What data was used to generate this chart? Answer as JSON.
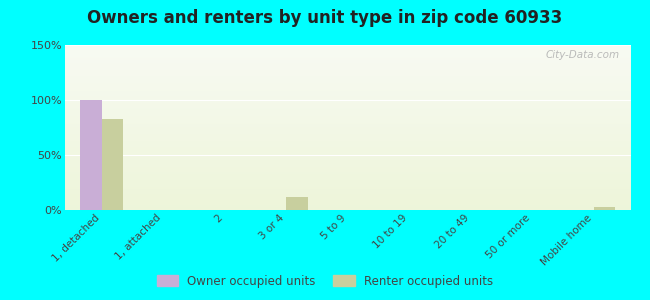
{
  "title": "Owners and renters by unit type in zip code 60933",
  "categories": [
    "1, detached",
    "1, attached",
    "2",
    "3 or 4",
    "5 to 9",
    "10 to 19",
    "20 to 49",
    "50 or more",
    "Mobile home"
  ],
  "owner_values": [
    100,
    0,
    0,
    0,
    0,
    0,
    0,
    0,
    0
  ],
  "renter_values": [
    83,
    0,
    0,
    12,
    0,
    0,
    0,
    0,
    3
  ],
  "owner_color": "#c9aed6",
  "renter_color": "#c8cf9e",
  "background_color": "#00ffff",
  "ylim": [
    0,
    150
  ],
  "yticks": [
    0,
    50,
    100,
    150
  ],
  "ytick_labels": [
    "0%",
    "50%",
    "100%",
    "150%"
  ],
  "bar_width": 0.35,
  "title_fontsize": 12,
  "watermark": "City-Data.com"
}
